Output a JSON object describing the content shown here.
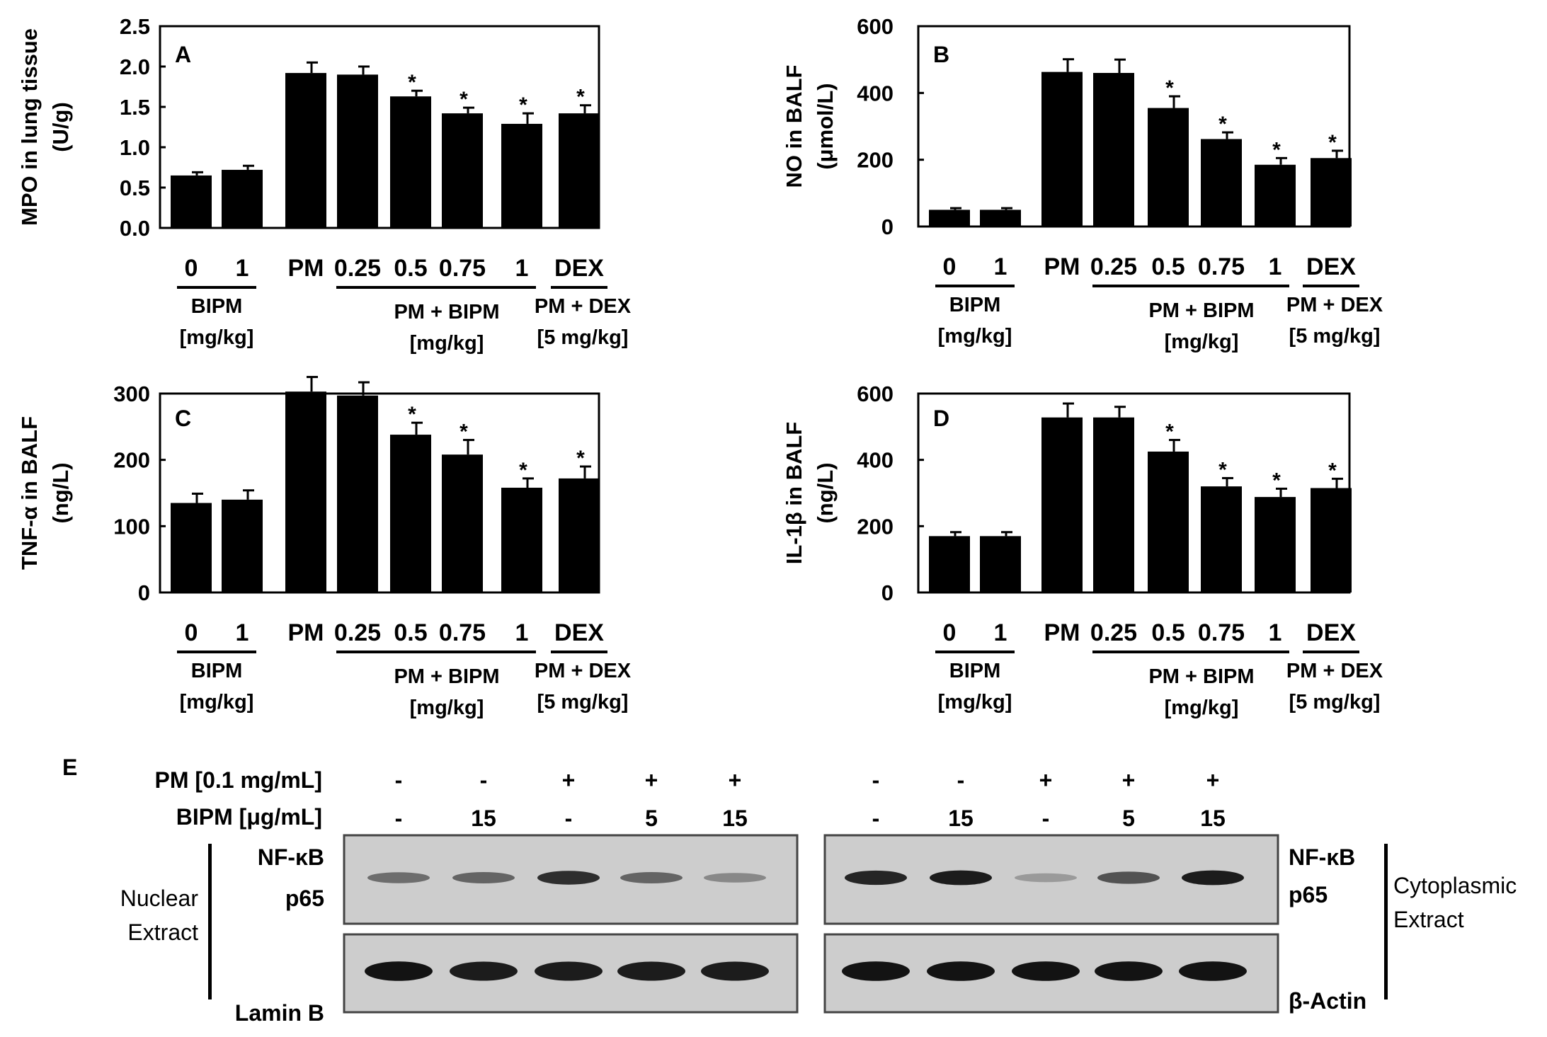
{
  "chart_data": [
    {
      "panel": "A",
      "type": "bar",
      "ylabel_line1": "MPO in lung tissue",
      "ylabel_line2": "(U/g)",
      "ylim": [
        0,
        2.5
      ],
      "yticks": [
        "0.0",
        "0.5",
        "1.0",
        "1.5",
        "2.0",
        "2.5"
      ],
      "categories": [
        "0",
        "1",
        "PM",
        "0.25",
        "0.5",
        "0.75",
        "1",
        "DEX"
      ],
      "values": [
        0.65,
        0.72,
        1.92,
        1.9,
        1.63,
        1.42,
        1.29,
        1.42
      ],
      "errors": [
        0.04,
        0.05,
        0.13,
        0.1,
        0.07,
        0.07,
        0.13,
        0.1
      ],
      "significant": [
        false,
        false,
        false,
        false,
        true,
        true,
        true,
        true
      ],
      "group_labels": {
        "bipm": "BIPM",
        "bipm_unit": "[mg/kg]",
        "pm_bipm": "PM + BIPM",
        "pm_bipm_unit": "[mg/kg]",
        "pm_dex": "PM + DEX",
        "pm_dex_unit": "[5 mg/kg]"
      }
    },
    {
      "panel": "B",
      "type": "bar",
      "ylabel_line1": "NO in BALF",
      "ylabel_line2": "(μmol/L)",
      "ylim": [
        0,
        600
      ],
      "yticks": [
        "0",
        "200",
        "400",
        "600"
      ],
      "categories": [
        "0",
        "1",
        "PM",
        "0.25",
        "0.5",
        "0.75",
        "1",
        "DEX"
      ],
      "values": [
        50,
        50,
        463,
        460,
        355,
        262,
        185,
        205
      ],
      "errors": [
        5,
        5,
        38,
        40,
        35,
        20,
        20,
        22
      ],
      "significant": [
        false,
        false,
        false,
        false,
        true,
        true,
        true,
        true
      ],
      "group_labels": {
        "bipm": "BIPM",
        "bipm_unit": "[mg/kg]",
        "pm_bipm": "PM + BIPM",
        "pm_bipm_unit": "[mg/kg]",
        "pm_dex": "PM + DEX",
        "pm_dex_unit": "[5 mg/kg]"
      }
    },
    {
      "panel": "C",
      "type": "bar",
      "ylabel_line1": "TNF-α in BALF",
      "ylabel_line2": "(ng/L)",
      "ylim": [
        0,
        300
      ],
      "yticks": [
        "0",
        "100",
        "200",
        "300"
      ],
      "categories": [
        "0",
        "1",
        "PM",
        "0.25",
        "0.5",
        "0.75",
        "1",
        "DEX"
      ],
      "values": [
        135,
        140,
        303,
        297,
        238,
        208,
        158,
        172
      ],
      "errors": [
        14,
        14,
        22,
        20,
        18,
        22,
        14,
        18
      ],
      "significant": [
        false,
        false,
        false,
        false,
        true,
        true,
        true,
        true
      ],
      "group_labels": {
        "bipm": "BIPM",
        "bipm_unit": "[mg/kg]",
        "pm_bipm": "PM + BIPM",
        "pm_bipm_unit": "[mg/kg]",
        "pm_dex": "PM + DEX",
        "pm_dex_unit": "[5 mg/kg]"
      }
    },
    {
      "panel": "D",
      "type": "bar",
      "ylabel_line1": "IL-1β in BALF",
      "ylabel_line2": "(ng/L)",
      "ylim": [
        0,
        600
      ],
      "yticks": [
        "0",
        "200",
        "400",
        "600"
      ],
      "categories": [
        "0",
        "1",
        "PM",
        "0.25",
        "0.5",
        "0.75",
        "1",
        "DEX"
      ],
      "values": [
        170,
        170,
        528,
        528,
        425,
        320,
        288,
        315
      ],
      "errors": [
        12,
        12,
        42,
        32,
        35,
        25,
        25,
        28
      ],
      "significant": [
        false,
        false,
        false,
        false,
        true,
        true,
        true,
        true
      ],
      "group_labels": {
        "bipm": "BIPM",
        "bipm_unit": "[mg/kg]",
        "pm_bipm": "PM + BIPM",
        "pm_bipm_unit": "[mg/kg]",
        "pm_dex": "PM + DEX",
        "pm_dex_unit": "[5 mg/kg]"
      }
    }
  ],
  "western_blot": {
    "panel": "E",
    "pm_label": "PM [0.1 mg/mL]",
    "bipm_label": "BIPM [μg/mL]",
    "pm_row": [
      "-",
      "-",
      "+",
      "+",
      "+"
    ],
    "bipm_row": [
      "-",
      "15",
      "-",
      "5",
      "15"
    ],
    "nuclear": {
      "side_label_1": "Nuclear",
      "side_label_2": "Extract",
      "target_1": "NF-κB",
      "target_2": "p65",
      "control": "Lamin B",
      "target_intensity": [
        0.45,
        0.5,
        0.8,
        0.5,
        0.3
      ],
      "control_intensity": [
        0.95,
        0.9,
        0.9,
        0.9,
        0.9
      ]
    },
    "cytoplasmic": {
      "side_label_1": "Cytoplasmic",
      "side_label_2": "Extract",
      "target_1": "NF-κB",
      "target_2": "p65",
      "control": "β-Actin",
      "target_intensity": [
        0.85,
        0.9,
        0.2,
        0.6,
        0.9
      ],
      "control_intensity": [
        0.95,
        0.95,
        0.95,
        0.95,
        0.95
      ]
    }
  }
}
